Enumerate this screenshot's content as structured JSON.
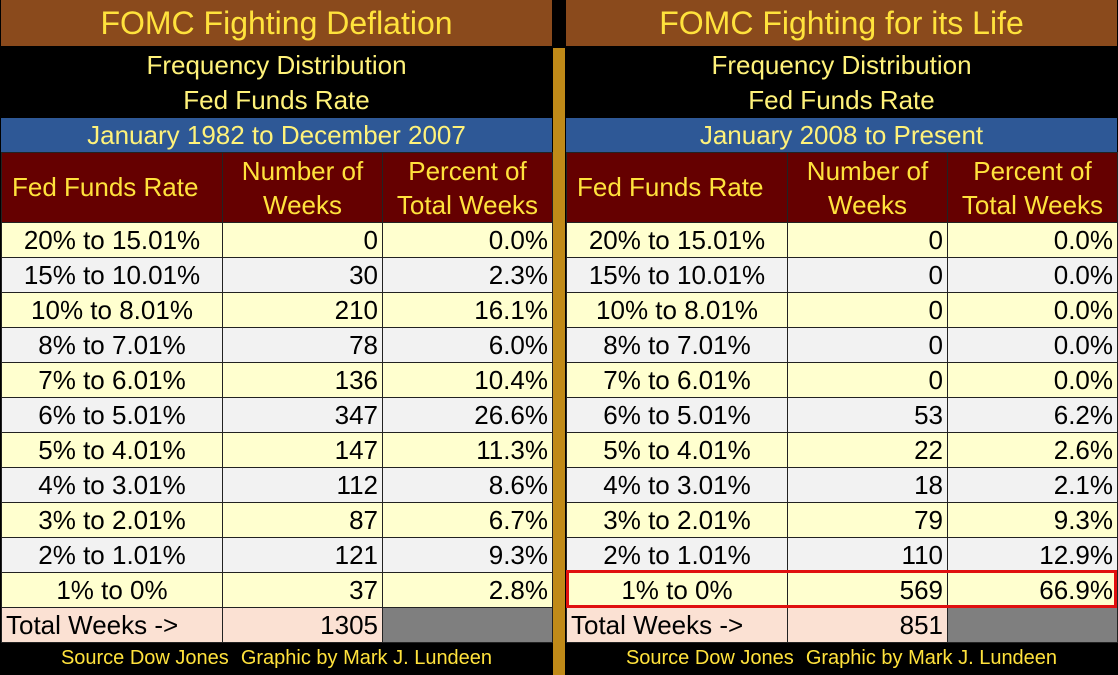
{
  "chart_data": [
    {
      "type": "table",
      "title": "FOMC Fighting Deflation",
      "subtitle_lines": [
        "Frequency Distribution",
        "Fed Funds Rate"
      ],
      "period": "January 1982 to December 2007",
      "columns": [
        "Fed Funds Rate",
        "Number of Weeks",
        "Percent of Total Weeks"
      ],
      "column_header_lines": [
        [
          "Fed Funds Rate"
        ],
        [
          "Number of",
          "Weeks"
        ],
        [
          "Percent of",
          "Total Weeks"
        ]
      ],
      "rows": [
        {
          "range": "20% to 15.01%",
          "weeks": "0",
          "percent": "0.0%"
        },
        {
          "range": "15% to 10.01%",
          "weeks": "30",
          "percent": "2.3%"
        },
        {
          "range": "10% to 8.01%",
          "weeks": "210",
          "percent": "16.1%"
        },
        {
          "range": "8% to 7.01%",
          "weeks": "78",
          "percent": "6.0%"
        },
        {
          "range": "7% to 6.01%",
          "weeks": "136",
          "percent": "10.4%"
        },
        {
          "range": "6% to 5.01%",
          "weeks": "347",
          "percent": "26.6%"
        },
        {
          "range": "5% to 4.01%",
          "weeks": "147",
          "percent": "11.3%"
        },
        {
          "range": "4% to 3.01%",
          "weeks": "112",
          "percent": "8.6%"
        },
        {
          "range": "3% to 2.01%",
          "weeks": "87",
          "percent": "6.7%"
        },
        {
          "range": "2% to 1.01%",
          "weeks": "121",
          "percent": "9.3%"
        },
        {
          "range": "1% to 0%",
          "weeks": "37",
          "percent": "2.8%"
        }
      ],
      "total_label": "Total Weeks ->",
      "total_weeks": "1305",
      "source": "Source Dow Jones",
      "credit": "Graphic by Mark J. Lundeen"
    },
    {
      "type": "table",
      "title": "FOMC Fighting for its Life",
      "subtitle_lines": [
        "Frequency Distribution",
        "Fed Funds Rate"
      ],
      "period": "January 2008 to Present",
      "columns": [
        "Fed Funds Rate",
        "Number of Weeks",
        "Percent of Total Weeks"
      ],
      "column_header_lines": [
        [
          "Fed Funds Rate"
        ],
        [
          "Number of",
          "Weeks"
        ],
        [
          "Percent of",
          "Total Weeks"
        ]
      ],
      "rows": [
        {
          "range": "20% to 15.01%",
          "weeks": "0",
          "percent": "0.0%"
        },
        {
          "range": "15% to 10.01%",
          "weeks": "0",
          "percent": "0.0%"
        },
        {
          "range": "10% to 8.01%",
          "weeks": "0",
          "percent": "0.0%"
        },
        {
          "range": "8% to 7.01%",
          "weeks": "0",
          "percent": "0.0%"
        },
        {
          "range": "7% to 6.01%",
          "weeks": "0",
          "percent": "0.0%"
        },
        {
          "range": "6% to 5.01%",
          "weeks": "53",
          "percent": "6.2%"
        },
        {
          "range": "5% to 4.01%",
          "weeks": "22",
          "percent": "2.6%"
        },
        {
          "range": "4% to 3.01%",
          "weeks": "18",
          "percent": "2.1%"
        },
        {
          "range": "3% to 2.01%",
          "weeks": "79",
          "percent": "9.3%"
        },
        {
          "range": "2% to 1.01%",
          "weeks": "110",
          "percent": "12.9%"
        },
        {
          "range": "1% to 0%",
          "weeks": "569",
          "percent": "66.9%"
        }
      ],
      "highlighted_row": "1% to 0%",
      "total_label": "Total Weeks ->",
      "total_weeks": "851",
      "source": "Source Dow Jones",
      "credit": "Graphic by Mark J. Lundeen"
    }
  ],
  "colors": {
    "title_bg": "#8a4a1c",
    "title_text": "#ffe23c",
    "period_bg": "#2e5896",
    "header_bg": "#650000",
    "row_odd": "#ffffcf",
    "row_even": "#f2f2f2",
    "total_bg": "#fbe1d3",
    "highlight_border": "#e01010",
    "divider": "#c08a18"
  }
}
